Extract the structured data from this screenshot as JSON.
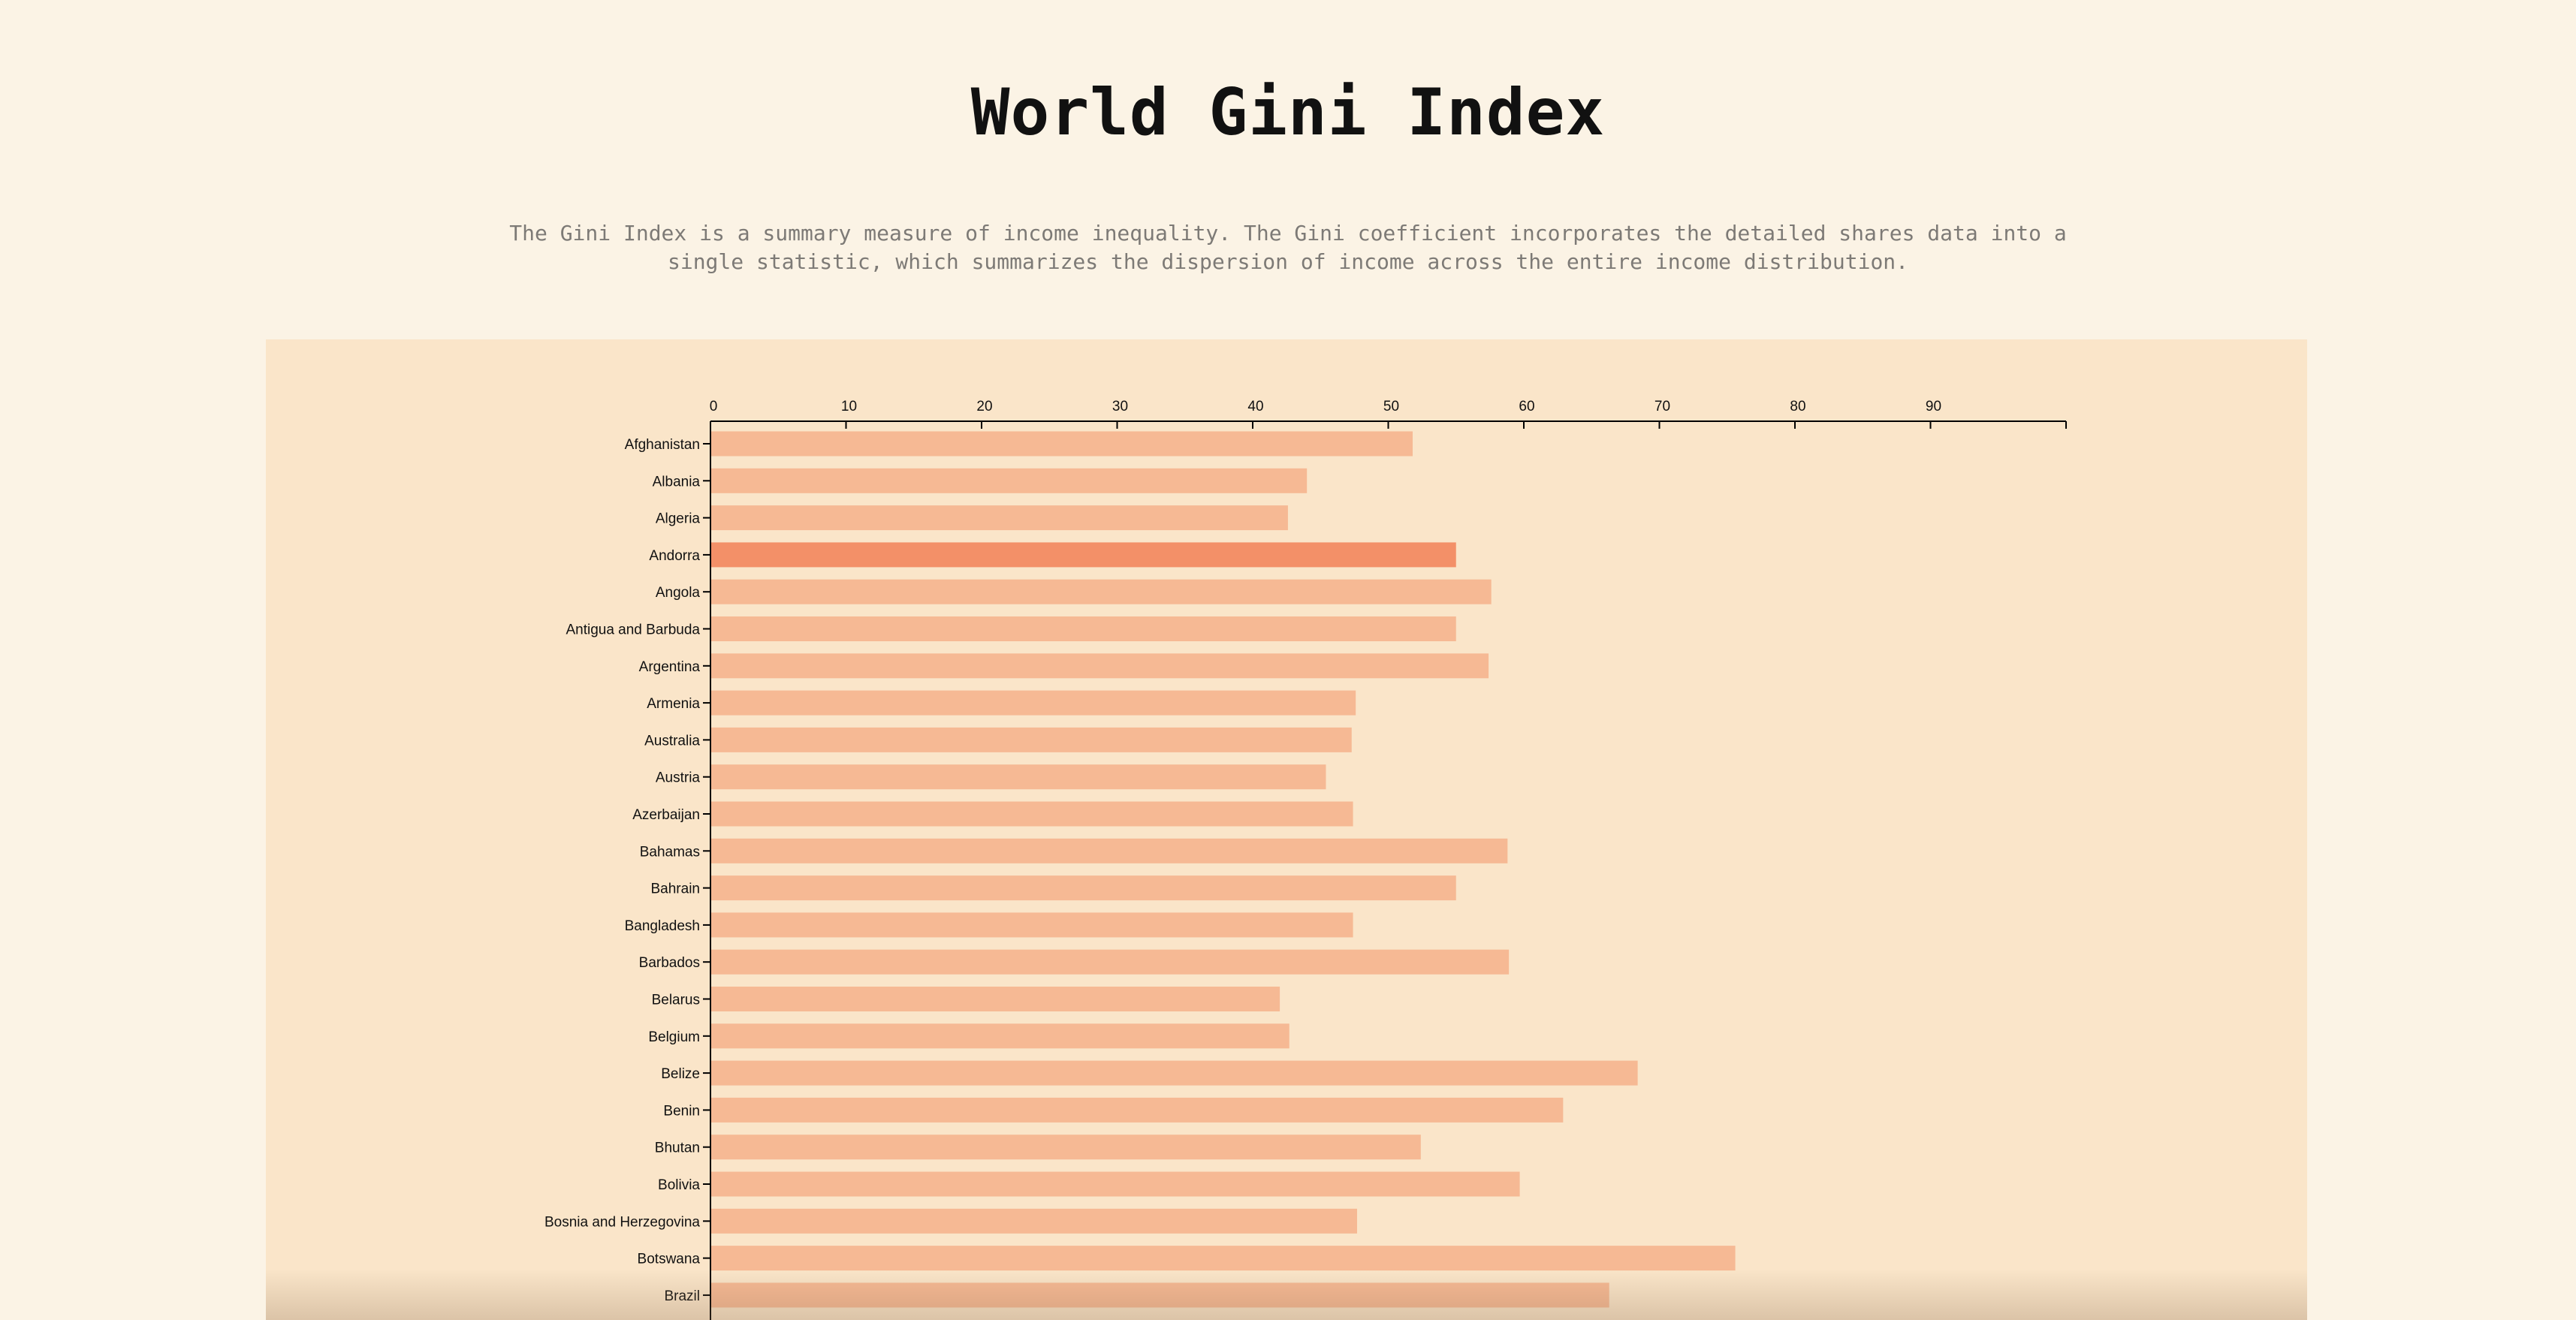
{
  "page": {
    "title": "World Gini Index",
    "description": "The Gini Index is a summary measure of income inequality. The Gini coefficient incorporates the detailed shares data into a single statistic, which summarizes the dispersion of income across the entire income distribution."
  },
  "colors": {
    "background": "#fbf3e5",
    "panel": "#fae5c9",
    "bar": "#f6b994",
    "bar_highlight": "#f39068",
    "axis": "#000000"
  },
  "chart_data": {
    "type": "bar",
    "orientation": "horizontal",
    "categories": [
      "Afghanistan",
      "Albania",
      "Algeria",
      "Andorra",
      "Angola",
      "Antigua and Barbuda",
      "Argentina",
      "Armenia",
      "Australia",
      "Austria",
      "Azerbaijan",
      "Bahamas",
      "Bahrain",
      "Bangladesh",
      "Barbados",
      "Belarus",
      "Belgium",
      "Belize",
      "Benin",
      "Bhutan",
      "Bolivia",
      "Bosnia and Herzegovina",
      "Botswana",
      "Brazil"
    ],
    "values": [
      51.8,
      44.0,
      42.6,
      55.0,
      57.6,
      55.0,
      57.4,
      47.6,
      47.3,
      45.4,
      47.4,
      58.8,
      55.0,
      47.4,
      58.9,
      42.0,
      42.7,
      68.4,
      62.9,
      52.4,
      59.7,
      47.7,
      75.6,
      66.3
    ],
    "highlighted": "Andorra",
    "xticks": [
      0,
      10,
      20,
      30,
      40,
      50,
      60,
      70,
      80,
      90
    ],
    "xlim": [
      0,
      100
    ],
    "axis_position": "top",
    "title": "",
    "xlabel": "",
    "ylabel": ""
  }
}
